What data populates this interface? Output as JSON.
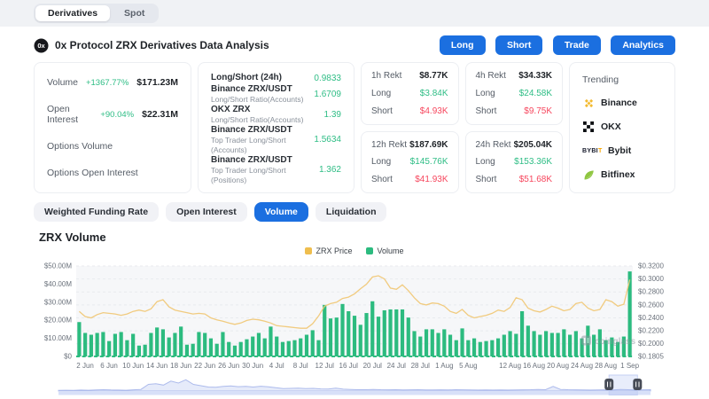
{
  "top_tabs": [
    {
      "label": "Derivatives",
      "active": true
    },
    {
      "label": "Spot",
      "active": false
    }
  ],
  "header": {
    "title": "0x Protocol ZRX Derivatives Data Analysis",
    "buttons": [
      {
        "label": "Long"
      },
      {
        "label": "Short"
      },
      {
        "label": "Trade"
      },
      {
        "label": "Analytics"
      }
    ]
  },
  "stats_card": {
    "rows": [
      {
        "label": "Volume",
        "change": "+1367.77%",
        "value": "$171.23M"
      },
      {
        "label": "Open Interest",
        "change": "+90.04%",
        "value": "$22.31M"
      },
      {
        "label": "Options Volume",
        "change": "",
        "value": ""
      },
      {
        "label": "Options Open Interest",
        "change": "",
        "value": ""
      }
    ]
  },
  "ratio_card": {
    "rows": [
      {
        "label": "Long/Short (24h)",
        "sub": "",
        "value": "0.9833"
      },
      {
        "label": "Binance ZRX/USDT",
        "sub": "Long/Short Ratio(Accounts)",
        "value": "1.6709"
      },
      {
        "label": "OKX ZRX",
        "sub": "Long/Short Ratio(Accounts)",
        "value": "1.39"
      },
      {
        "label": "Binance ZRX/USDT",
        "sub": "Top Trader Long/Short (Accounts)",
        "value": "1.5634"
      },
      {
        "label": "Binance ZRX/USDT",
        "sub": "Top Trader Long/Short (Positions)",
        "value": "1.362"
      }
    ]
  },
  "labels": {
    "long": "Long",
    "short": "Short"
  },
  "rekt_cards": [
    {
      "title": "1h Rekt",
      "total": "$8.77K",
      "long": "$3.84K",
      "short": "$4.93K"
    },
    {
      "title": "4h Rekt",
      "total": "$34.33K",
      "long": "$24.58K",
      "short": "$9.75K"
    },
    {
      "title": "12h Rekt",
      "total": "$187.69K",
      "long": "$145.76K",
      "short": "$41.93K"
    },
    {
      "title": "24h Rekt",
      "total": "$205.04K",
      "long": "$153.36K",
      "short": "$51.68K"
    }
  ],
  "trending": {
    "title": "Trending",
    "items": [
      {
        "label": "Binance"
      },
      {
        "label": "OKX"
      },
      {
        "label": "Bybit"
      },
      {
        "label": "Bitfinex"
      }
    ]
  },
  "chart_tabs": [
    {
      "label": "Weighted Funding Rate",
      "active": false
    },
    {
      "label": "Open Interest",
      "active": false
    },
    {
      "label": "Volume",
      "active": true
    },
    {
      "label": "Liquidation",
      "active": false
    }
  ],
  "chart_section": {
    "title": "ZRX Volume",
    "watermark": "coinglass"
  },
  "legend": [
    {
      "label": "ZRX Price",
      "color": "#EFBE4E"
    },
    {
      "label": "Volume",
      "color": "#2CBB7F"
    }
  ],
  "colors": {
    "accent_blue": "#1B6FE0",
    "positive": "#2EBD85",
    "negative": "#F6465D",
    "bar": "#2CBB7F",
    "price_line": "#F0C878"
  },
  "chart_data": {
    "type": "bar",
    "title": "ZRX Volume",
    "legend_position": "top",
    "grid": true,
    "x": [
      "1 Jun",
      "2 Jun",
      "3 Jun",
      "4 Jun",
      "5 Jun",
      "6 Jun",
      "7 Jun",
      "8 Jun",
      "9 Jun",
      "10 Jun",
      "11 Jun",
      "12 Jun",
      "13 Jun",
      "14 Jun",
      "15 Jun",
      "16 Jun",
      "17 Jun",
      "18 Jun",
      "19 Jun",
      "20 Jun",
      "21 Jun",
      "22 Jun",
      "23 Jun",
      "24 Jun",
      "25 Jun",
      "26 Jun",
      "27 Jun",
      "28 Jun",
      "29 Jun",
      "30 Jun",
      "1 Jul",
      "2 Jul",
      "3 Jul",
      "4 Jul",
      "5 Jul",
      "6 Jul",
      "7 Jul",
      "8 Jul",
      "9 Jul",
      "10 Jul",
      "11 Jul",
      "12 Jul",
      "13 Jul",
      "14 Jul",
      "15 Jul",
      "16 Jul",
      "17 Jul",
      "18 Jul",
      "19 Jul",
      "20 Jul",
      "21 Jul",
      "22 Jul",
      "23 Jul",
      "24 Jul",
      "25 Jul",
      "26 Jul",
      "27 Jul",
      "28 Jul",
      "29 Jul",
      "30 Jul",
      "31 Jul",
      "1 Aug",
      "2 Aug",
      "3 Aug",
      "4 Aug",
      "5 Aug",
      "6 Aug",
      "7 Aug",
      "8 Aug",
      "9 Aug",
      "10 Aug",
      "11 Aug",
      "12 Aug",
      "13 Aug",
      "14 Aug",
      "15 Aug",
      "16 Aug",
      "17 Aug",
      "18 Aug",
      "19 Aug",
      "20 Aug",
      "21 Aug",
      "22 Aug",
      "23 Aug",
      "24 Aug",
      "25 Aug",
      "26 Aug",
      "27 Aug",
      "28 Aug",
      "29 Aug",
      "30 Aug",
      "31 Aug",
      "1 Sep"
    ],
    "x_tick_labels": [
      "2 Jun",
      "6 Jun",
      "10 Jun",
      "14 Jun",
      "18 Jun",
      "22 Jun",
      "26 Jun",
      "30 Jun",
      "4 Jul",
      "8 Jul",
      "12 Jul",
      "16 Jul",
      "20 Jul",
      "24 Jul",
      "28 Jul",
      "1 Aug",
      "5 Aug",
      "12 Aug",
      "16 Aug",
      "20 Aug",
      "24 Aug",
      "28 Aug",
      "1 Sep"
    ],
    "series": [
      {
        "name": "Volume",
        "type": "bar",
        "axis": "left",
        "unit": "$M",
        "values": [
          19,
          13,
          12,
          13,
          13.5,
          8.5,
          12.5,
          13.5,
          9,
          12.5,
          6,
          6.5,
          13,
          16,
          15,
          10.5,
          13,
          16.5,
          6.5,
          7,
          13.5,
          13,
          10,
          7,
          13.5,
          8,
          6,
          8,
          9.5,
          11,
          13,
          10,
          16.5,
          11,
          8,
          8.5,
          9,
          10,
          12,
          14.5,
          9,
          28.5,
          21,
          21.5,
          29,
          25,
          22.5,
          17.5,
          24,
          30.5,
          22,
          25.5,
          26,
          26,
          26,
          21.5,
          14,
          11,
          15,
          15,
          13,
          15,
          12,
          9,
          15.5,
          9,
          10,
          8,
          8.5,
          9,
          10,
          12,
          14,
          12.5,
          25,
          17,
          14,
          12,
          14,
          13,
          13,
          15,
          12,
          14,
          10,
          17,
          12,
          15,
          9,
          10.5,
          8,
          11,
          47
        ]
      },
      {
        "name": "ZRX Price",
        "type": "line",
        "axis": "right",
        "unit": "$",
        "values": [
          0.25,
          0.242,
          0.24,
          0.245,
          0.248,
          0.247,
          0.246,
          0.244,
          0.246,
          0.25,
          0.252,
          0.25,
          0.254,
          0.265,
          0.268,
          0.257,
          0.252,
          0.25,
          0.248,
          0.246,
          0.247,
          0.246,
          0.24,
          0.237,
          0.235,
          0.232,
          0.23,
          0.232,
          0.236,
          0.238,
          0.237,
          0.235,
          0.232,
          0.228,
          0.227,
          0.226,
          0.225,
          0.224,
          0.224,
          0.231,
          0.243,
          0.258,
          0.262,
          0.264,
          0.27,
          0.272,
          0.277,
          0.285,
          0.292,
          0.303,
          0.305,
          0.3,
          0.286,
          0.284,
          0.291,
          0.282,
          0.271,
          0.262,
          0.26,
          0.263,
          0.262,
          0.258,
          0.25,
          0.247,
          0.253,
          0.244,
          0.24,
          0.242,
          0.244,
          0.247,
          0.252,
          0.25,
          0.256,
          0.271,
          0.268,
          0.255,
          0.251,
          0.249,
          0.253,
          0.258,
          0.255,
          0.251,
          0.253,
          0.262,
          0.264,
          0.255,
          0.251,
          0.253,
          0.268,
          0.265,
          0.258,
          0.261,
          0.299
        ]
      }
    ],
    "y_left": {
      "labels": [
        "$50.00M",
        "$40.00M",
        "$30.00M",
        "$20.00M",
        "$10.00M",
        "$0"
      ],
      "tick_values": [
        50,
        40,
        30,
        20,
        10,
        0
      ],
      "min": 0,
      "max": 50,
      "unit": "millions USD"
    },
    "y_right": {
      "labels": [
        "$0.3200",
        "$0.3000",
        "$0.2800",
        "$0.2600",
        "$0.2400",
        "$0.2200",
        "$0.2000",
        "$0.1805"
      ],
      "tick_values": [
        0.32,
        0.3,
        0.28,
        0.26,
        0.24,
        0.22,
        0.2,
        0.1805
      ],
      "min": 0.1805,
      "max": 0.32
    }
  },
  "navigator": {
    "values": [
      0.05,
      0.06,
      0.05,
      0.07,
      0.06,
      0.08,
      0.1,
      0.08,
      0.07,
      0.06,
      0.09,
      0.12,
      0.5,
      0.55,
      0.45,
      0.75,
      0.6,
      0.85,
      0.5,
      0.4,
      0.3,
      0.28,
      0.35,
      0.38,
      0.33,
      0.35,
      0.3,
      0.36,
      0.32,
      0.25,
      0.18,
      0.2,
      0.22,
      0.18,
      0.2,
      0.16,
      0.15,
      0.22,
      0.14,
      0.12,
      0.1,
      0.1,
      0.12,
      0.1,
      0.09,
      0.1,
      0.08,
      0.09,
      0.1,
      0.08,
      0.08,
      0.09,
      0.08,
      0.1,
      0.09,
      0.08,
      0.07,
      0.08,
      0.07,
      0.08,
      0.07,
      0.08,
      0.09,
      0.1,
      0.12,
      0.1,
      0.35,
      0.12,
      0.1,
      0.09,
      0.08,
      0.07,
      0.08,
      0.09,
      0.08,
      0.12,
      0.1,
      0.08,
      0.09,
      0.1
    ],
    "selection": [
      0.93,
      0.978
    ]
  }
}
